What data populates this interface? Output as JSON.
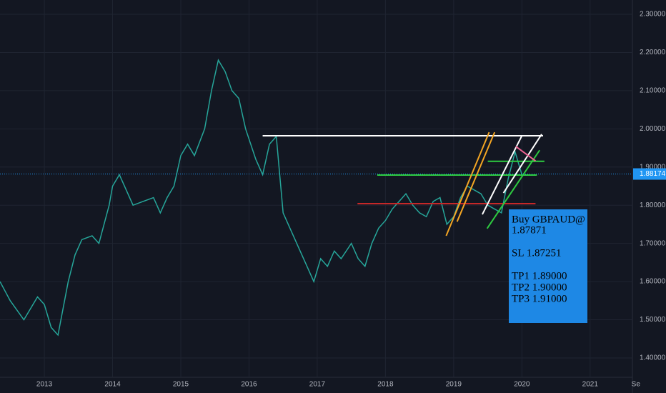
{
  "chart_data": {
    "type": "line",
    "color": "#26a69a",
    "grid": true,
    "xlim": [
      2012.35,
      2021.62
    ],
    "ylim": [
      1.36,
      2.3
    ],
    "xticks": [
      2013,
      2014,
      2015,
      2016,
      2017,
      2018,
      2019,
      2020,
      2021,
      {
        "value": 2021.67,
        "label": "Se"
      }
    ],
    "yticks": [
      {
        "value": 1.4,
        "label": "1.40000"
      },
      {
        "value": 1.5,
        "label": "1.50000"
      },
      {
        "value": 1.6,
        "label": "1.60000"
      },
      {
        "value": 1.7,
        "label": "1.70000"
      },
      {
        "value": 1.8,
        "label": "1.80000"
      },
      {
        "value": 1.9,
        "label": "1.90000"
      },
      {
        "value": 2.0,
        "label": "2.00000"
      },
      {
        "value": 2.1,
        "label": "2.10000"
      },
      {
        "value": 2.2,
        "label": "2.20000"
      },
      {
        "value": 2.3,
        "label": "2.30000"
      }
    ],
    "x": [
      2012.35,
      2012.5,
      2012.7,
      2012.9,
      2013.0,
      2013.1,
      2013.2,
      2013.35,
      2013.45,
      2013.55,
      2013.7,
      2013.8,
      2013.95,
      2014.0,
      2014.1,
      2014.2,
      2014.3,
      2014.45,
      2014.6,
      2014.7,
      2014.8,
      2014.9,
      2015.0,
      2015.1,
      2015.2,
      2015.35,
      2015.45,
      2015.55,
      2015.65,
      2015.75,
      2015.85,
      2015.95,
      2016.1,
      2016.2,
      2016.3,
      2016.4,
      2016.5,
      2016.6,
      2016.7,
      2016.8,
      2016.9,
      2016.95,
      2017.05,
      2017.15,
      2017.25,
      2017.35,
      2017.5,
      2017.6,
      2017.7,
      2017.8,
      2017.9,
      2018.0,
      2018.1,
      2018.2,
      2018.3,
      2018.4,
      2018.5,
      2018.6,
      2018.7,
      2018.8,
      2018.9,
      2019.0,
      2019.1,
      2019.2,
      2019.3,
      2019.4,
      2019.5,
      2019.6,
      2019.7,
      2019.8,
      2019.9,
      2019.95,
      2020.0
    ],
    "values": [
      1.6,
      1.55,
      1.5,
      1.56,
      1.54,
      1.48,
      1.46,
      1.6,
      1.67,
      1.71,
      1.72,
      1.7,
      1.8,
      1.85,
      1.88,
      1.84,
      1.8,
      1.81,
      1.82,
      1.78,
      1.82,
      1.85,
      1.93,
      1.96,
      1.93,
      2.0,
      2.1,
      2.18,
      2.15,
      2.1,
      2.08,
      2.0,
      1.92,
      1.88,
      1.96,
      1.98,
      1.78,
      1.74,
      1.7,
      1.66,
      1.62,
      1.6,
      1.66,
      1.64,
      1.68,
      1.66,
      1.7,
      1.66,
      1.64,
      1.7,
      1.74,
      1.76,
      1.79,
      1.81,
      1.83,
      1.8,
      1.78,
      1.77,
      1.81,
      1.82,
      1.75,
      1.77,
      1.82,
      1.85,
      1.84,
      1.83,
      1.8,
      1.79,
      1.78,
      1.87,
      1.94,
      1.91,
      1.88
    ],
    "last_price": {
      "value": 1.88174,
      "label": "1.88174"
    },
    "drawings": [
      {
        "color": "#ffffff",
        "x": [
          2016.2,
          2020.31
        ],
        "y": [
          1.982,
          1.982
        ]
      },
      {
        "color": "#2ecc40",
        "x": [
          2017.88,
          2020.22
        ],
        "y": [
          1.879,
          1.879
        ]
      },
      {
        "color": "#c62828",
        "x": [
          2017.59,
          2020.2
        ],
        "y": [
          1.804,
          1.804
        ]
      },
      {
        "color": "#2ecc40",
        "x": [
          2019.5,
          2020.33
        ],
        "y": [
          1.915,
          1.915
        ]
      },
      {
        "color": "#f5a623",
        "x": [
          2018.89,
          2019.52
        ],
        "y": [
          1.72,
          1.991
        ]
      },
      {
        "color": "#f5a623",
        "x": [
          2019.05,
          2019.6
        ],
        "y": [
          1.757,
          1.991
        ]
      },
      {
        "color": "#ffffff",
        "x": [
          2019.42,
          2020.0
        ],
        "y": [
          1.776,
          1.982
        ]
      },
      {
        "color": "#ffffff",
        "x": [
          2019.73,
          2020.29
        ],
        "y": [
          1.832,
          1.986
        ]
      },
      {
        "color": "#2ecc40",
        "x": [
          2019.49,
          2020.26
        ],
        "y": [
          1.739,
          1.944
        ]
      },
      {
        "color": "#f06292",
        "x": [
          2019.91,
          2020.2
        ],
        "y": [
          1.954,
          1.916
        ]
      }
    ],
    "annotation": [
      "Buy GBPAUD@",
      "1.87871",
      "SL 1.87251",
      "TP1 1.89000",
      "TP2 1.90000",
      "TP3 1.91000"
    ]
  }
}
